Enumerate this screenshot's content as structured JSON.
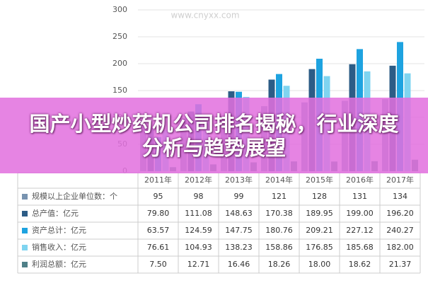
{
  "chart_data": {
    "type": "bar",
    "title": "国产小型炒药机公司排名揭秘，行业深度分析与趋势展望",
    "watermark": "www.cnyxx.com",
    "categories": [
      "2011年",
      "2012年",
      "2013年",
      "2014年",
      "2015年",
      "2016年",
      "2017年"
    ],
    "ylim": [
      0,
      300
    ],
    "yticks": [
      0,
      50,
      100,
      150,
      200,
      250,
      300
    ],
    "grid": true,
    "series": [
      {
        "name": "规模以上企业单位数：个",
        "color": "#7893b0",
        "values": [
          95,
          98,
          99,
          121,
          128,
          131,
          134
        ]
      },
      {
        "name": "总产值：亿元",
        "color": "#2c5c86",
        "values": [
          79.8,
          111.08,
          148.63,
          170.38,
          189.95,
          199,
          196.2
        ],
        "value_labels": [
          "79.80",
          "111.08",
          "148.63",
          "170.38",
          "189.95",
          "199.00",
          "196.20"
        ]
      },
      {
        "name": "资产总计：亿元",
        "color": "#1ea3e0",
        "values": [
          63.57,
          124.59,
          147.75,
          180.76,
          209.21,
          227.12,
          240.27
        ],
        "value_labels": [
          "63.57",
          "124.59",
          "147.75",
          "180.76",
          "209.21",
          "227.12",
          "240.27"
        ]
      },
      {
        "name": "销售收入：亿元",
        "color": "#7fd4f0",
        "values": [
          76.61,
          104.93,
          138.23,
          158.86,
          176.85,
          185.68,
          182
        ],
        "value_labels": [
          "76.61",
          "104.93",
          "138.23",
          "158.86",
          "176.85",
          "185.68",
          "182.00"
        ]
      },
      {
        "name": "利润总额：亿元",
        "color": "#4f8088",
        "values": [
          7.5,
          12.71,
          16.46,
          18.26,
          18,
          18.62,
          21.37
        ],
        "value_labels": [
          "7.50",
          "12.71",
          "16.46",
          "18.26",
          "18.00",
          "18.62",
          "21.37"
        ]
      }
    ]
  }
}
